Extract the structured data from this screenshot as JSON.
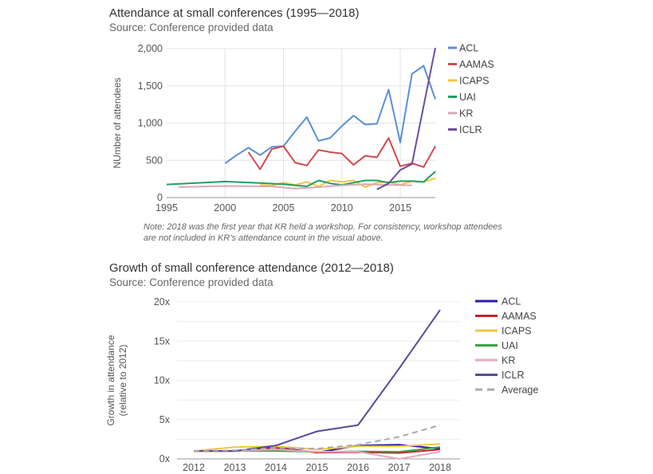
{
  "chart_data": [
    {
      "type": "line",
      "title": "Attendance at small conferences (1995—2018)",
      "subtitle": "Source: Conference provided data",
      "xlabel": "",
      "ylabel": "NUmber of attendees",
      "xlim": [
        1995,
        2018
      ],
      "ylim": [
        0,
        2000
      ],
      "x_ticks": [
        "1995",
        "2000",
        "2005",
        "2010",
        "2015"
      ],
      "x_tick_values": [
        1995,
        2000,
        2005,
        2010,
        2015
      ],
      "y_ticks": [
        "0",
        "500",
        "1,000",
        "1,500",
        "2,000"
      ],
      "y_tick_values": [
        0,
        500,
        1000,
        1500,
        2000
      ],
      "grid": true,
      "legend_position": "right",
      "series": [
        {
          "name": "ACL",
          "color": "#5b8fd6",
          "points": [
            [
              2000,
              460
            ],
            [
              2001,
              570
            ],
            [
              2002,
              670
            ],
            [
              2003,
              570
            ],
            [
              2004,
              680
            ],
            [
              2005,
              690
            ],
            [
              2006,
              890
            ],
            [
              2007,
              1080
            ],
            [
              2008,
              760
            ],
            [
              2009,
              800
            ],
            [
              2010,
              960
            ],
            [
              2011,
              1100
            ],
            [
              2012,
              980
            ],
            [
              2013,
              990
            ],
            [
              2014,
              1450
            ],
            [
              2015,
              740
            ],
            [
              2016,
              1660
            ],
            [
              2017,
              1770
            ],
            [
              2018,
              1320
            ]
          ]
        },
        {
          "name": "AAMAS",
          "color": "#d04a4e",
          "points": [
            [
              2002,
              610
            ],
            [
              2003,
              380
            ],
            [
              2004,
              650
            ],
            [
              2005,
              690
            ],
            [
              2006,
              470
            ],
            [
              2007,
              430
            ],
            [
              2008,
              640
            ],
            [
              2009,
              610
            ],
            [
              2010,
              590
            ],
            [
              2011,
              440
            ],
            [
              2012,
              560
            ],
            [
              2013,
              540
            ],
            [
              2014,
              800
            ],
            [
              2015,
              420
            ],
            [
              2016,
              460
            ],
            [
              2017,
              410
            ],
            [
              2018,
              690
            ]
          ]
        },
        {
          "name": "ICAPS",
          "color": "#f2c73a",
          "points": [
            [
              2003,
              170
            ],
            [
              2004,
              160
            ],
            [
              2005,
              200
            ],
            [
              2006,
              170
            ],
            [
              2007,
              210
            ],
            [
              2008,
              150
            ],
            [
              2009,
              230
            ],
            [
              2010,
              210
            ],
            [
              2011,
              230
            ],
            [
              2012,
              140
            ],
            [
              2013,
              200
            ],
            [
              2014,
              210
            ],
            [
              2015,
              170
            ],
            [
              2016,
              220
            ],
            [
              2017,
              210
            ],
            [
              2018,
              260
            ]
          ]
        },
        {
          "name": "UAI",
          "color": "#1fa060",
          "points": [
            [
              1995,
              175
            ],
            [
              2000,
              215
            ],
            [
              2003,
              195
            ],
            [
              2005,
              180
            ],
            [
              2007,
              150
            ],
            [
              2008,
              230
            ],
            [
              2009,
              190
            ],
            [
              2010,
              170
            ],
            [
              2011,
              200
            ],
            [
              2012,
              230
            ],
            [
              2013,
              230
            ],
            [
              2014,
              200
            ],
            [
              2015,
              220
            ],
            [
              2016,
              220
            ],
            [
              2017,
              210
            ],
            [
              2018,
              350
            ]
          ]
        },
        {
          "name": "KR",
          "color": "#d9a9b8",
          "points": [
            [
              1996,
              140
            ],
            [
              2000,
              155
            ],
            [
              2004,
              150
            ],
            [
              2006,
              120
            ],
            [
              2008,
              140
            ],
            [
              2010,
              165
            ],
            [
              2012,
              180
            ],
            [
              2014,
              170
            ],
            [
              2016,
              165
            ]
          ]
        },
        {
          "name": "ICLR",
          "color": "#6b4e9e",
          "points": [
            [
              2013,
              110
            ],
            [
              2014,
              190
            ],
            [
              2015,
              370
            ],
            [
              2016,
              450
            ],
            [
              2018,
              2010
            ]
          ]
        }
      ],
      "note": "Note: 2018 was the first year that KR held a workshop. For consistency, workshop attendees are not included in KR’s attendance count in the visual above."
    },
    {
      "type": "line",
      "title": "Growth of small conference attendance (2012—2018)",
      "subtitle": "Source: Conference provided data",
      "xlabel": "",
      "ylabel": "Growth in attendance (relative to 2012)",
      "ylabel_lines": [
        "Growth in attendance",
        "(relative to 2012)"
      ],
      "categories": [
        "2012",
        "2013",
        "2014",
        "2015",
        "2016",
        "2017",
        "2018"
      ],
      "x_values": [
        2012,
        2013,
        2014,
        2015,
        2016,
        2017,
        2018
      ],
      "ylim": [
        0,
        20
      ],
      "y_ticks": [
        "0x",
        "5x",
        "10x",
        "15x",
        "20x"
      ],
      "y_tick_values": [
        0,
        5,
        10,
        15,
        20
      ],
      "grid": true,
      "legend_position": "right",
      "series": [
        {
          "name": "ACL",
          "color": "#2f1aa8",
          "dashed": false,
          "values": [
            1.0,
            1.0,
            1.5,
            0.8,
            1.7,
            1.8,
            1.3
          ]
        },
        {
          "name": "AAMAS",
          "color": "#cc1f2a",
          "dashed": false,
          "values": [
            1.0,
            1.0,
            1.4,
            0.8,
            0.85,
            0.75,
            1.2
          ]
        },
        {
          "name": "ICAPS",
          "color": "#f0c93c",
          "dashed": false,
          "values": [
            1.0,
            1.5,
            1.6,
            1.2,
            1.6,
            1.6,
            1.9
          ]
        },
        {
          "name": "UAI",
          "color": "#3e9e48",
          "dashed": false,
          "values": [
            1.0,
            1.0,
            1.0,
            0.9,
            0.95,
            0.9,
            1.5
          ]
        },
        {
          "name": "KR",
          "color": "#e6a9c4",
          "dashed": false,
          "values": [
            1.0,
            1.0,
            1.2,
            0.9,
            0.9,
            0.0,
            0.9
          ]
        },
        {
          "name": "ICLR",
          "color": "#5a4a96",
          "dashed": false,
          "values": [
            1.0,
            1.0,
            1.7,
            3.5,
            4.3,
            11.5,
            19.0
          ]
        },
        {
          "name": "Average",
          "color": "#aaaaaa",
          "dashed": true,
          "values": [
            1.0,
            1.1,
            1.4,
            1.3,
            1.8,
            2.8,
            4.3
          ]
        }
      ]
    }
  ]
}
